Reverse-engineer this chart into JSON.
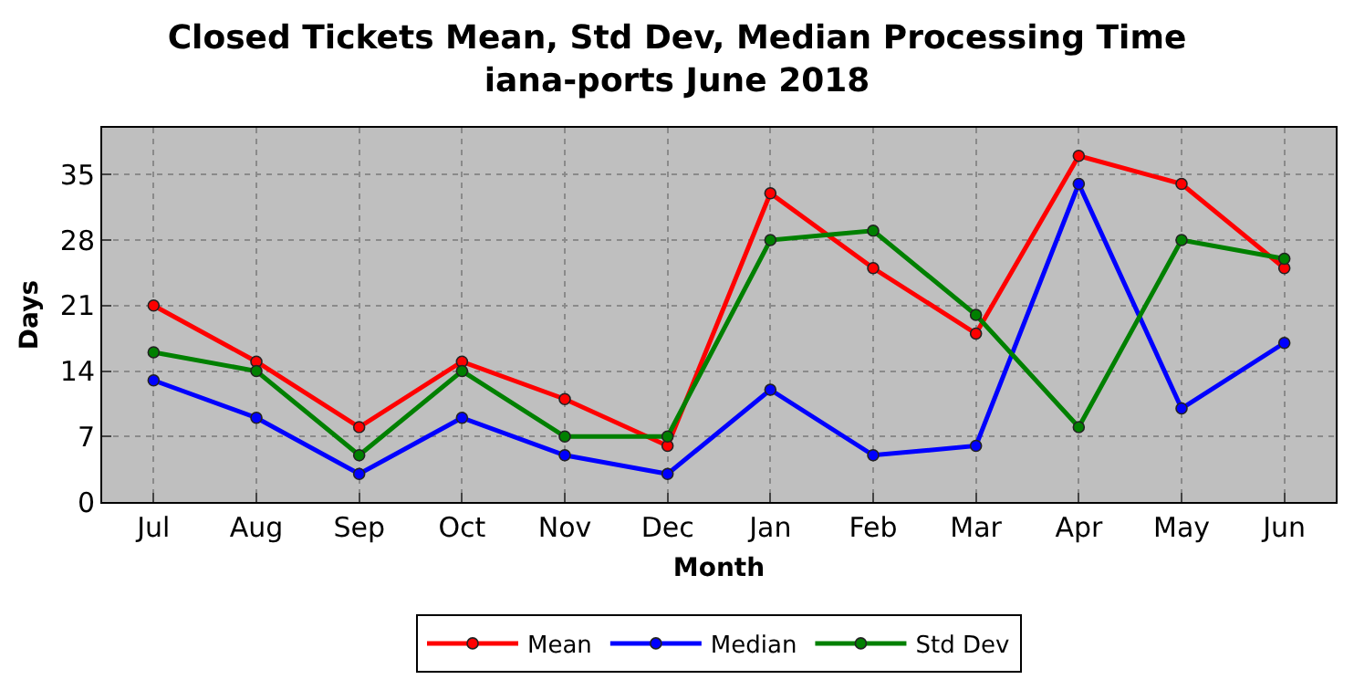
{
  "chart_data": {
    "type": "line",
    "title": "Closed Tickets Mean, Std Dev, Median Processing Time\niana-ports June 2018",
    "xlabel": "Month",
    "ylabel": "Days",
    "categories": [
      "Jul",
      "Aug",
      "Sep",
      "Oct",
      "Nov",
      "Dec",
      "Jan",
      "Feb",
      "Mar",
      "Apr",
      "May",
      "Jun"
    ],
    "series": [
      {
        "name": "Mean",
        "color": "#ff0000",
        "values": [
          21,
          15,
          8,
          15,
          11,
          6,
          33,
          25,
          18,
          37,
          34,
          25
        ]
      },
      {
        "name": "Median",
        "color": "#0000ff",
        "values": [
          13,
          9,
          3,
          9,
          5,
          3,
          12,
          5,
          6,
          34,
          10,
          17
        ]
      },
      {
        "name": "Std Dev",
        "color": "#008000",
        "values": [
          16,
          14,
          5,
          14,
          7,
          7,
          28,
          29,
          20,
          8,
          28,
          26
        ]
      }
    ],
    "ylim": [
      0,
      40
    ],
    "yticks": [
      0,
      7,
      14,
      21,
      28,
      35
    ],
    "grid": true,
    "legend": "bottom",
    "marker": "circle",
    "line_style": "solid"
  }
}
